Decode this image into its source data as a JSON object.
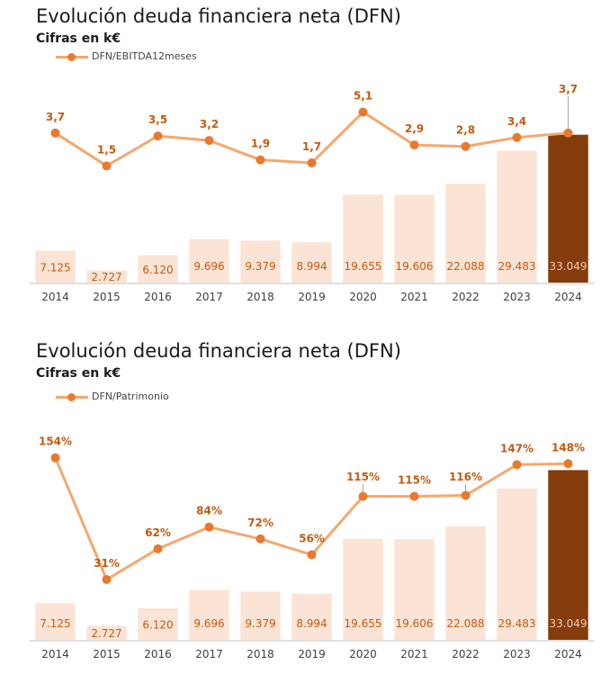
{
  "chart_data": [
    {
      "type": "bar",
      "title": "Evolución deuda financiera neta (DFN)",
      "subtitle": "Cifras en k€",
      "categories": [
        "2014",
        "2015",
        "2016",
        "2017",
        "2018",
        "2019",
        "2020",
        "2021",
        "2022",
        "2023",
        "2024"
      ],
      "bar_values": [
        7125,
        2727,
        6120,
        9696,
        9379,
        8994,
        19655,
        19606,
        22088,
        29483,
        33049
      ],
      "bar_labels": [
        "7.125",
        "2.727",
        "6.120",
        "9.696",
        "9.379",
        "8.994",
        "19.655",
        "19.606",
        "22.088",
        "29.483",
        "33.049"
      ],
      "line": {
        "name": "DFN/EBITDA12meses",
        "values": [
          3.7,
          1.5,
          3.5,
          3.2,
          1.9,
          1.7,
          5.1,
          2.9,
          2.8,
          3.4,
          3.7
        ],
        "labels": [
          "3,7",
          "1,5",
          "3,5",
          "3,2",
          "1,9",
          "1,7",
          "5,1",
          "2,9",
          "2,8",
          "3,4",
          "3,7"
        ]
      },
      "colors": {
        "bar": "#fbe4d5",
        "bar_highlight": "#843c0c",
        "line": "#f4a86f",
        "marker": "#e8792f",
        "label": "#c55a11"
      },
      "legend_position": "top-left",
      "grid": false
    },
    {
      "type": "bar",
      "title": "Evolución deuda financiera neta (DFN)",
      "subtitle": "Cifras en k€",
      "categories": [
        "2014",
        "2015",
        "2016",
        "2017",
        "2018",
        "2019",
        "2020",
        "2021",
        "2022",
        "2023",
        "2024"
      ],
      "bar_values": [
        7125,
        2727,
        6120,
        9696,
        9379,
        8994,
        19655,
        19606,
        22088,
        29483,
        33049
      ],
      "bar_labels": [
        "7.125",
        "2.727",
        "6.120",
        "9.696",
        "9.379",
        "8.994",
        "19.655",
        "19.606",
        "22.088",
        "29.483",
        "33.049"
      ],
      "line": {
        "name": "DFN/Patrimonio",
        "values": [
          154,
          31,
          62,
          84,
          72,
          56,
          115,
          115,
          116,
          147,
          148
        ],
        "labels": [
          "154%",
          "31%",
          "62%",
          "84%",
          "72%",
          "56%",
          "115%",
          "115%",
          "116%",
          "147%",
          "148%"
        ]
      },
      "colors": {
        "bar": "#fbe4d5",
        "bar_highlight": "#843c0c",
        "line": "#f4a86f",
        "marker": "#e8792f",
        "label": "#c55a11"
      },
      "legend_position": "top-left",
      "grid": false
    }
  ]
}
